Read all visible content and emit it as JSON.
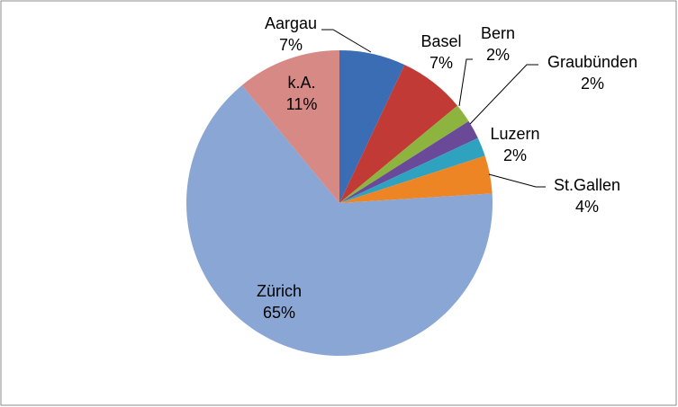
{
  "chart_data": {
    "type": "pie",
    "categories": [
      "Aargau",
      "Basel",
      "Bern",
      "Graubünden",
      "Luzern",
      "St.Gallen",
      "Zürich",
      "k.A."
    ],
    "values": [
      7,
      7,
      2,
      2,
      2,
      4,
      65,
      11
    ],
    "value_labels": [
      "7%",
      "7%",
      "2%",
      "2%",
      "2%",
      "4%",
      "65%",
      "11%"
    ],
    "colors": [
      "#3b6db5",
      "#c23a35",
      "#8cb43f",
      "#6a4a98",
      "#2fa2c0",
      "#ee8524",
      "#8aa6d4",
      "#d68985"
    ]
  }
}
